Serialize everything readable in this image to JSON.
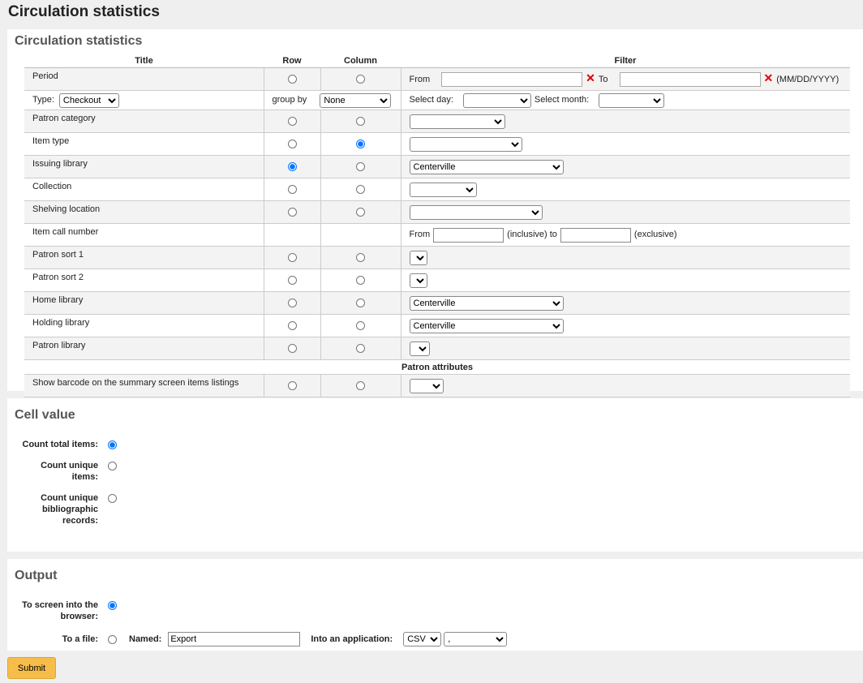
{
  "header": {
    "title": "Circulation statistics"
  },
  "stats": {
    "heading": "Circulation statistics",
    "columns": [
      "Title",
      "Row",
      "Column",
      "Filter"
    ],
    "period": {
      "label": "Period",
      "from": "From",
      "to": "To",
      "format": "(MM/DD/YYYY)"
    },
    "type_row": {
      "type_label": "Type:",
      "type_value": "Checkout",
      "group_by": "group by",
      "group_value": "None",
      "select_day": "Select day:",
      "select_month": "Select month:"
    },
    "rows": [
      {
        "label": "Patron category"
      },
      {
        "label": "Item type",
        "checked": "column"
      },
      {
        "label": "Issuing library",
        "checked": "row",
        "filter": "Centerville"
      },
      {
        "label": "Collection"
      },
      {
        "label": "Shelving location"
      },
      {
        "label": "Item call number",
        "from": "From",
        "inclusive_to": "(inclusive) to",
        "exclusive": "(exclusive)"
      },
      {
        "label": "Patron sort 1"
      },
      {
        "label": "Patron sort 2"
      },
      {
        "label": "Home library",
        "filter": "Centerville"
      },
      {
        "label": "Holding library",
        "filter": "Centerville"
      },
      {
        "label": "Patron library"
      }
    ],
    "attributes_heading": "Patron attributes",
    "barcode_row": {
      "label": "Show barcode on the summary screen items listings"
    }
  },
  "cell_value": {
    "heading": "Cell value",
    "options": [
      {
        "label": "Count total items:",
        "checked": true
      },
      {
        "label": "Count unique items:"
      },
      {
        "label": "Count unique bibliographic records:"
      }
    ]
  },
  "output": {
    "heading": "Output",
    "screen": "To screen into the browser:",
    "file": "To a file:",
    "named": "Named:",
    "filename": "Export",
    "application": "Into an application:",
    "format": "CSV",
    "delimiter": ",",
    "checked": "screen"
  },
  "submit": "Submit"
}
